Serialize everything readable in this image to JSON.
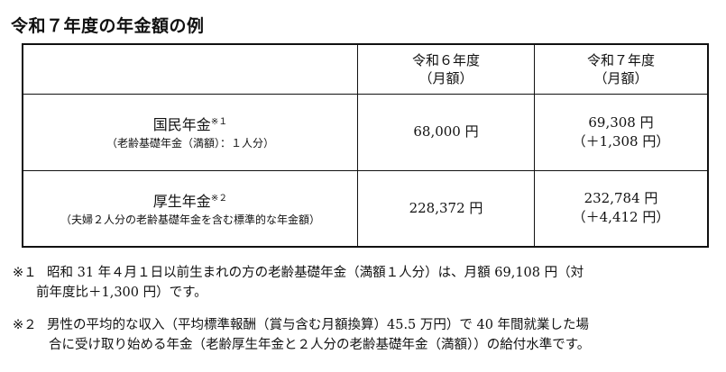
{
  "title": "令和７年度の年金額の例",
  "table": {
    "headers": [
      {
        "line1": "",
        "line2": ""
      },
      {
        "line1": "令和６年度",
        "line2": "（月額）"
      },
      {
        "line1": "令和７年度",
        "line2": "（月額）"
      }
    ],
    "rows": [
      {
        "label": "国民年金",
        "footnote_ref": "※１",
        "sublabel": "（老齢基礎年金（満額）：１人分）",
        "r6": "68,000 円",
        "r7": "69,308 円",
        "r7_diff": "（＋1,308 円）"
      },
      {
        "label": "厚生年金",
        "footnote_ref": "※２",
        "sublabel": "（夫婦２人分の老齢基礎年金を含む標準的な年金額）",
        "r6": "228,372 円",
        "r7": "232,784 円",
        "r7_diff": "（＋4,412 円）"
      }
    ]
  },
  "notes": [
    {
      "mark": "※１",
      "line1": "昭和 31 年４月１日以前生まれの方の老齢基礎年金（満額１人分）は、月額 69,108 円（対",
      "line2": "前年度比＋1,300 円）です。"
    },
    {
      "mark": "※２",
      "line1": "男性の平均的な収入（平均標準報酬（賞与含む月額換算）45.5 万円）で 40 年間就業した場",
      "line2": "合に受け取り始める年金（老齢厚生年金と２人分の老齢基礎年金（満額））の給付水準です。"
    }
  ]
}
